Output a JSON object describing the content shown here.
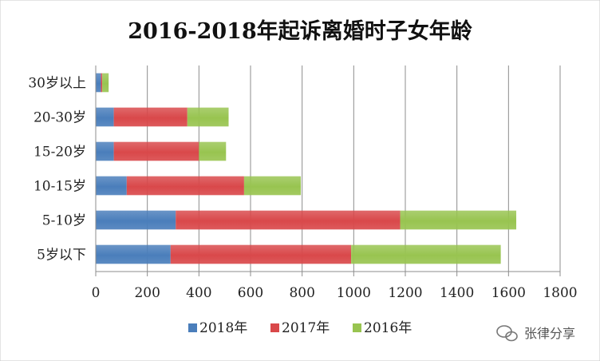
{
  "chart_data": {
    "type": "bar",
    "orientation": "horizontal",
    "stacked": true,
    "title": "2016-2018年起诉离婚时子女年龄",
    "categories": [
      "5岁以下",
      "5-10岁",
      "10-15岁",
      "15-20岁",
      "20-30岁",
      "30岁以上"
    ],
    "series": [
      {
        "name": "2018年",
        "values": [
          290,
          310,
          120,
          70,
          70,
          20
        ],
        "color": "#4a7ebb"
      },
      {
        "name": "2017年",
        "values": [
          700,
          870,
          455,
          330,
          285,
          5
        ],
        "color": "#d9484a"
      },
      {
        "name": "2016年",
        "values": [
          580,
          450,
          220,
          105,
          160,
          25
        ],
        "color": "#98c450"
      }
    ],
    "xlim": [
      0,
      1800
    ],
    "xticks": [
      "0",
      "200",
      "400",
      "600",
      "800",
      "1000",
      "1200",
      "1400",
      "1600",
      "1800"
    ],
    "grid": true,
    "legend": "bottom"
  },
  "watermark": {
    "text": "张律分享",
    "icon": "wechat-icon"
  }
}
